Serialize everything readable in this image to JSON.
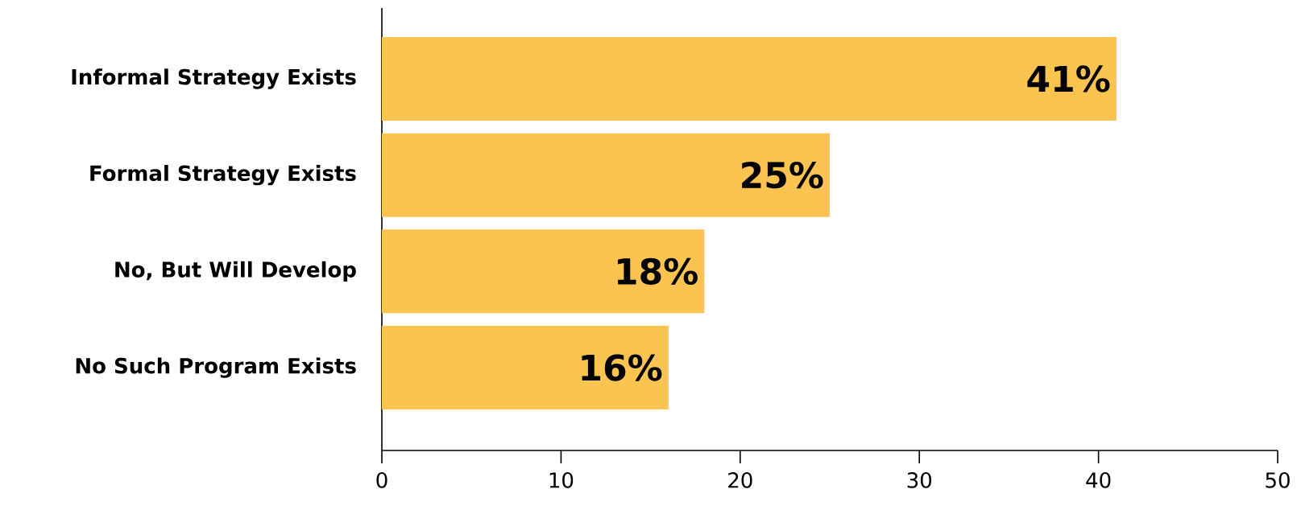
{
  "chart_data": {
    "type": "bar",
    "orientation": "horizontal",
    "categories": [
      "Informal Strategy Exists",
      "Formal Strategy Exists",
      "No, But Will Develop",
      "No Such Program Exists"
    ],
    "values": [
      41,
      25,
      18,
      16
    ],
    "value_labels": [
      "41%",
      "25%",
      "18%",
      "16%"
    ],
    "color": "#fbc350",
    "xlim": [
      0,
      50
    ],
    "xticks": [
      0,
      10,
      20,
      30,
      40,
      50
    ]
  }
}
